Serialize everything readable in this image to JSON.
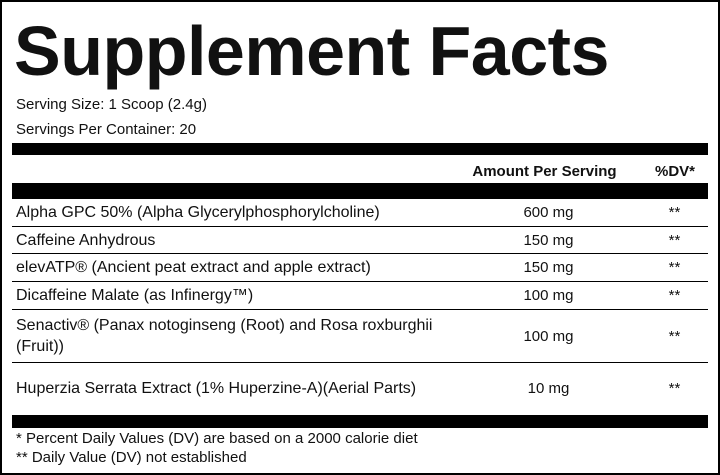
{
  "header": {
    "title": "Supplement Facts",
    "serving_size": "Serving Size: 1 Scoop (2.4g)",
    "servings_per_container": "Servings Per Container: 20"
  },
  "table": {
    "columns": [
      "Amount Per Serving",
      "%DV*"
    ],
    "rows": [
      [
        "Alpha GPC 50% (Alpha Glycerylphosphorylcholine)",
        "600 mg",
        "**"
      ],
      [
        "Caffeine Anhydrous",
        "150 mg",
        "**"
      ],
      [
        "elevATP® (Ancient peat extract and apple extract)",
        "150 mg",
        "**"
      ],
      [
        "Dicaffeine Malate (as Infinergy™)",
        "100 mg",
        "**"
      ],
      [
        "Senactiv® (Panax notoginseng (Root) and Rosa roxburghii (Fruit))",
        "100 mg",
        "**"
      ],
      [
        "Huperzia Serrata Extract (1% Huperzine-A)(Aerial Parts)",
        "10 mg",
        "**"
      ]
    ]
  },
  "footnotes": [
    "* Percent Daily Values (DV) are based on a 2000 calorie diet",
    "** Daily Value (DV) not established"
  ]
}
